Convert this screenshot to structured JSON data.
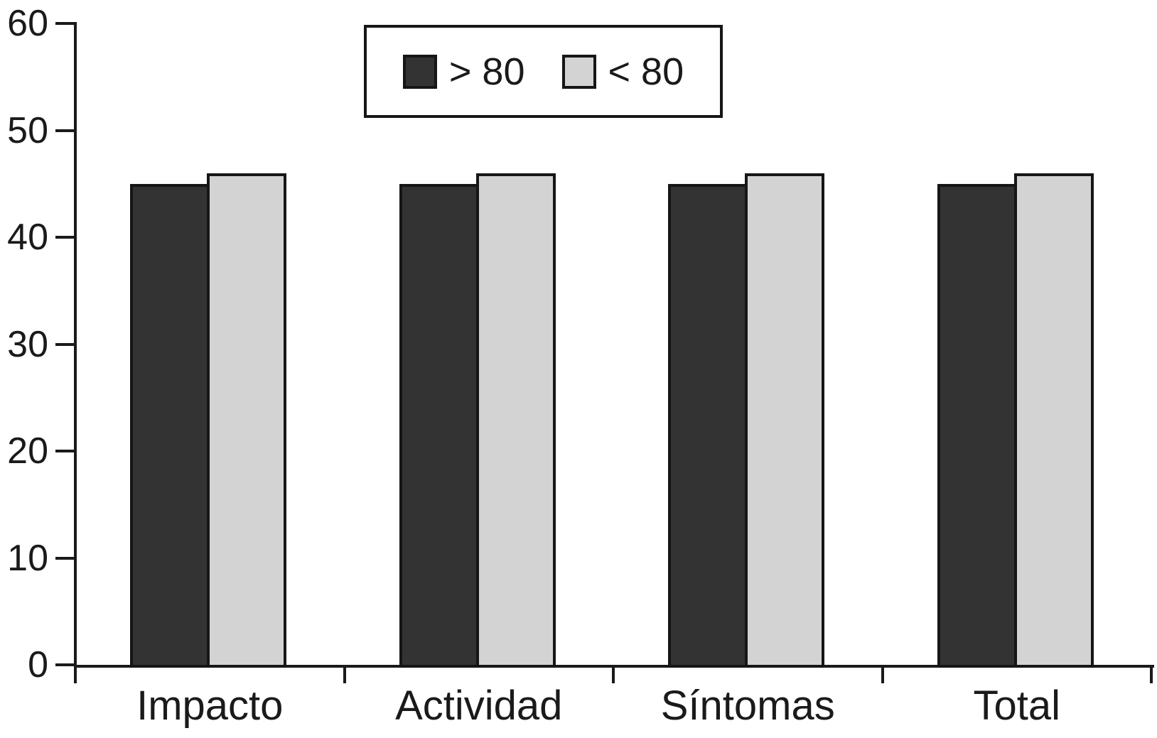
{
  "chart_data": {
    "type": "bar",
    "title": "",
    "xlabel": "",
    "ylabel": "",
    "categories": [
      "Impacto",
      "Actividad",
      "Síntomas",
      "Total"
    ],
    "series": [
      {
        "name": "> 80",
        "color": "#333333",
        "values": [
          45,
          45,
          45,
          45
        ]
      },
      {
        "name": "< 80",
        "color": "#d3d3d3",
        "values": [
          46,
          46,
          46,
          46
        ]
      }
    ],
    "ylim": [
      0,
      60
    ],
    "yticks": [
      0,
      10,
      20,
      30,
      40,
      50,
      60
    ],
    "grid": false,
    "legend_position": "top-center",
    "axis_color": "#1a1a1a",
    "bar_border_color": "#161616",
    "background_color": "#ffffff"
  }
}
